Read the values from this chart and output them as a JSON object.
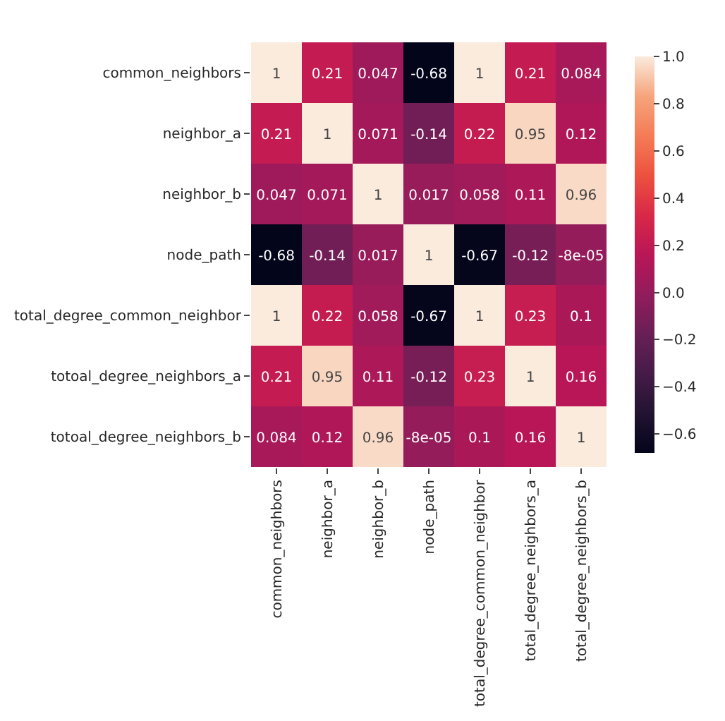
{
  "chart_data": {
    "type": "heatmap",
    "categories": [
      "common_neighbors",
      "neighbor_a",
      "neighbor_b",
      "node_path",
      "total_degree_common_neighbor",
      "total_degree_neighbors_a",
      "total_degree_neighbors_b"
    ],
    "y_categories": [
      "common_neighbors",
      "neighbor_a",
      "neighbor_b",
      "node_path",
      "total_degree_common_neighbor",
      "totoal_degree_neighbors_a",
      "totoal_degree_neighbors_b"
    ],
    "cells": [
      [
        1,
        0.21,
        0.047,
        -0.68,
        1,
        0.21,
        0.084
      ],
      [
        0.21,
        1,
        0.071,
        -0.14,
        0.22,
        0.95,
        0.12
      ],
      [
        0.047,
        0.071,
        1,
        0.017,
        0.058,
        0.11,
        0.96
      ],
      [
        -0.68,
        -0.14,
        0.017,
        1,
        -0.67,
        -0.12,
        -8e-05
      ],
      [
        1,
        0.22,
        0.058,
        -0.67,
        1,
        0.23,
        0.1
      ],
      [
        0.21,
        0.95,
        0.11,
        -0.12,
        0.23,
        1,
        0.16
      ],
      [
        0.084,
        0.12,
        0.96,
        -8e-05,
        0.1,
        0.16,
        1
      ]
    ],
    "data_labels": true,
    "clim": [
      -0.68,
      1
    ],
    "cticks": [
      {
        "value": -0.6,
        "label": "−0.6"
      },
      {
        "value": -0.4,
        "label": "−0.4"
      },
      {
        "value": -0.2,
        "label": "−0.2"
      },
      {
        "value": 0,
        "label": "0.0"
      },
      0.2,
      0.4,
      0.6,
      0.8,
      {
        "value": 1,
        "label": "1.0"
      }
    ]
  }
}
